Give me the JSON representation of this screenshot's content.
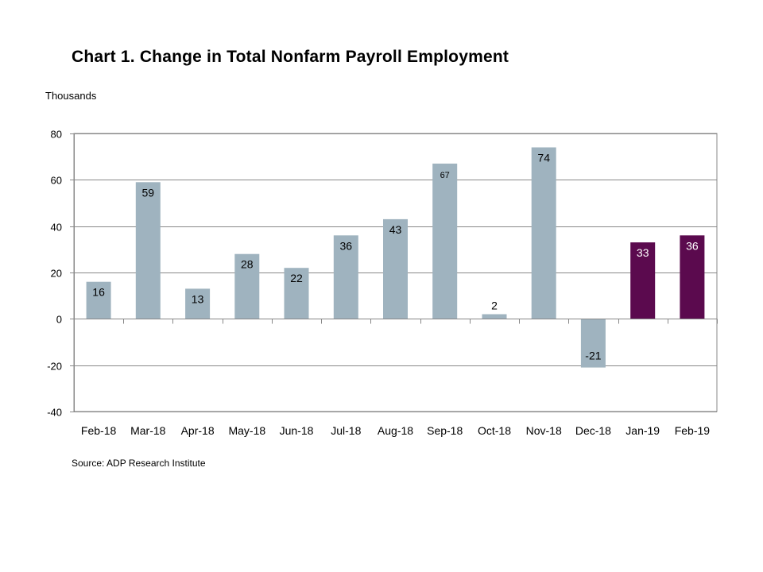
{
  "chart_data": {
    "type": "bar",
    "title": "Chart 1. Change in Total Nonfarm Payroll Employment",
    "ylabel": "Thousands",
    "xlabel": "",
    "source": "Source: ADP Research Institute",
    "categories": [
      "Feb-18",
      "Mar-18",
      "Apr-18",
      "May-18",
      "Jun-18",
      "Jul-18",
      "Aug-18",
      "Sep-18",
      "Oct-18",
      "Nov-18",
      "Dec-18",
      "Jan-19",
      "Feb-19"
    ],
    "values": [
      16,
      59,
      13,
      28,
      22,
      36,
      43,
      67,
      2,
      74,
      -21,
      33,
      36
    ],
    "data_labels": [
      "16",
      "59",
      "13",
      "28",
      "22",
      "36",
      "43",
      "67",
      "2",
      "74",
      "-21",
      "33",
      "36"
    ],
    "highlight_categories": [
      "Jan-19",
      "Feb-19"
    ],
    "ylim": [
      -40,
      80
    ],
    "yticks": [
      -40,
      -20,
      0,
      20,
      40,
      60,
      80
    ],
    "ytick_labels": [
      "-40",
      "-20",
      "0",
      "20",
      "40",
      "60",
      "80"
    ],
    "grid": true,
    "legend": "none",
    "colors": {
      "bar": "#9fb3bf",
      "highlight": "#5b0a4e",
      "highlight_label": "#ffffff",
      "label": "#000000",
      "grid": "#888888",
      "axis": "#888888",
      "plot_border": "#888888"
    }
  }
}
